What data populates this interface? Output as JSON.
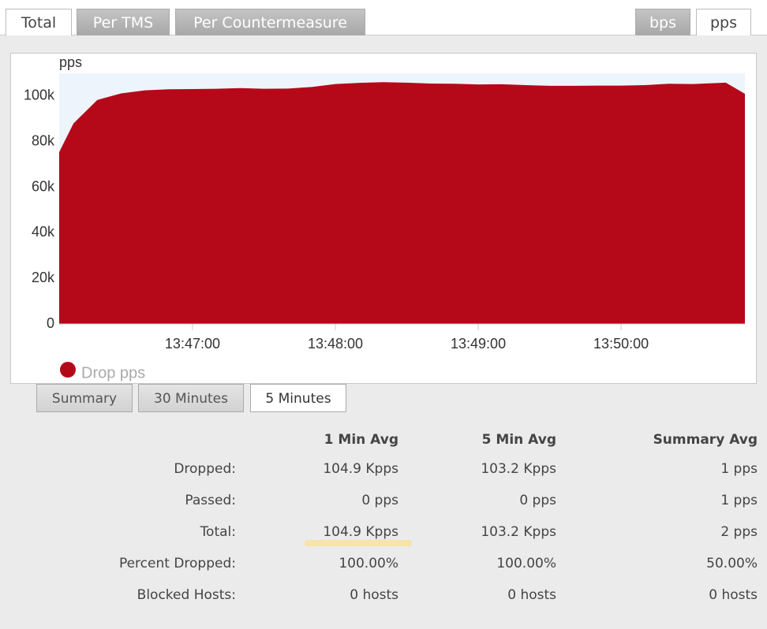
{
  "tabs": [
    "Total",
    "Per TMS",
    "Per Countermeasure"
  ],
  "unit_tabs": [
    "bps",
    "pps"
  ],
  "chart_data": {
    "type": "area",
    "y_label": "pps",
    "x": [
      "13:46:04",
      "13:46:10",
      "13:46:20",
      "13:46:30",
      "13:46:40",
      "13:46:50",
      "13:47:00",
      "13:47:10",
      "13:47:20",
      "13:47:30",
      "13:47:40",
      "13:47:50",
      "13:48:00",
      "13:48:10",
      "13:48:20",
      "13:48:30",
      "13:48:40",
      "13:48:50",
      "13:49:00",
      "13:49:10",
      "13:49:20",
      "13:49:30",
      "13:49:40",
      "13:49:50",
      "13:50:00",
      "13:50:10",
      "13:50:20",
      "13:50:30",
      "13:50:44",
      "13:50:52"
    ],
    "series": [
      {
        "name": "Drop pps",
        "color": "#b5091a",
        "values": [
          75400,
          88000,
          98300,
          101200,
          102500,
          103000,
          103100,
          103200,
          103500,
          103200,
          103300,
          104000,
          105300,
          105800,
          106100,
          105900,
          105500,
          105400,
          105100,
          105200,
          104800,
          104500,
          104500,
          104600,
          104600,
          104800,
          105400,
          105300,
          105900,
          101000
        ]
      }
    ],
    "xlim": [
      "13:46:04",
      "13:50:52"
    ],
    "xticks": [
      "13:47:00",
      "13:48:00",
      "13:49:00",
      "13:50:00"
    ],
    "ylim": [
      0,
      110000
    ],
    "yticks": [
      0,
      {
        "value": 20000,
        "label": "20k"
      },
      {
        "value": 40000,
        "label": "40k"
      },
      {
        "value": 60000,
        "label": "60k"
      },
      {
        "value": 80000,
        "label": "80k"
      },
      {
        "value": 100000,
        "label": "100k"
      }
    ],
    "grid": false,
    "legend": "bottom-left"
  },
  "range_tabs": [
    "Summary",
    "30 Minutes",
    "5 Minutes"
  ],
  "table": {
    "header": [
      "1 Min Avg",
      "5 Min Avg",
      "Summary Avg"
    ],
    "rows": [
      [
        "Dropped:",
        "104.9 Kpps",
        "103.2 Kpps",
        "1 pps"
      ],
      [
        "Passed:",
        "0 pps",
        "0 pps",
        "1 pps"
      ],
      [
        "Total:",
        "104.9 Kpps",
        "103.2 Kpps",
        "2 pps"
      ],
      [
        "Percent Dropped:",
        "100.00%",
        "100.00%",
        "50.00%"
      ],
      [
        "Blocked Hosts:",
        "0 hosts",
        "0 hosts",
        "0 hosts"
      ]
    ]
  }
}
